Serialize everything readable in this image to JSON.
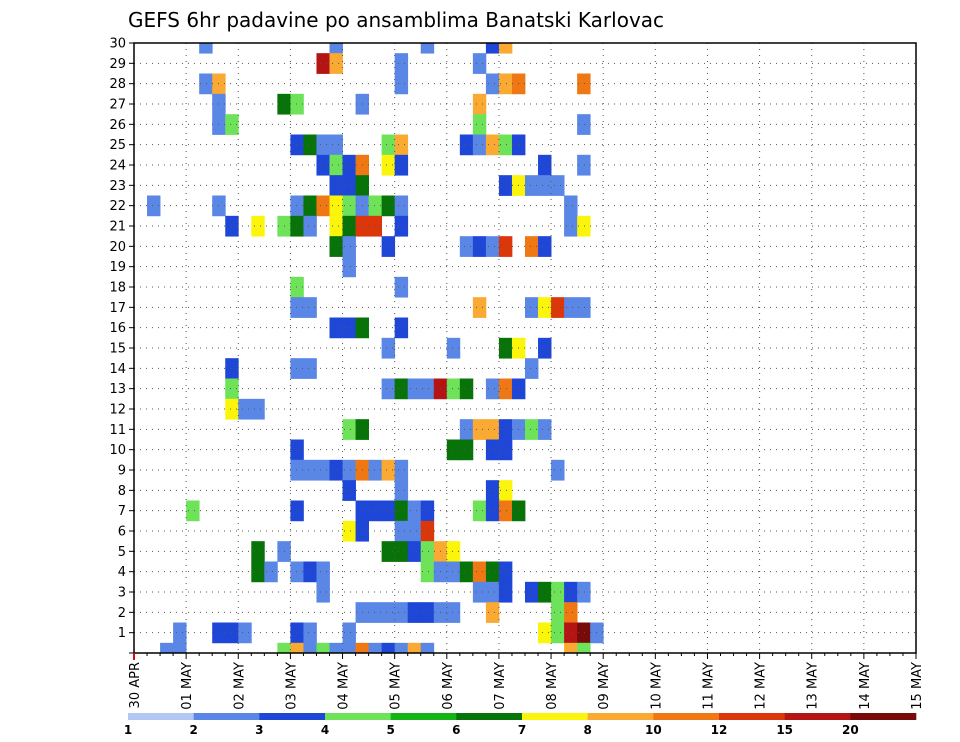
{
  "chart_data": {
    "type": "heatmap",
    "title": "GEFS 6hr padavine po ansamblima Banatski Karlovac",
    "xlabel": "",
    "ylabel": "",
    "x_tick_labels": [
      "30 APR",
      "01 MAY",
      "02 MAY",
      "03 MAY",
      "04 MAY",
      "05 MAY",
      "06 MAY",
      "07 MAY",
      "08 MAY",
      "09 MAY",
      "10 MAY",
      "11 MAY",
      "12 MAY",
      "13 MAY",
      "14 MAY",
      "15 MAY"
    ],
    "y_tick_labels": [
      "0",
      "1",
      "2",
      "3",
      "4",
      "5",
      "6",
      "7",
      "8",
      "9",
      "10",
      "11",
      "12",
      "13",
      "14",
      "15",
      "16",
      "17",
      "18",
      "19",
      "20",
      "21",
      "22",
      "23",
      "24",
      "25",
      "26",
      "27",
      "28",
      "29",
      "30"
    ],
    "ylim": [
      0,
      30
    ],
    "x_step_unit": "6 hr",
    "x_steps_total": 60,
    "grid": true,
    "legend": {
      "placement": "bottom",
      "levels": [
        "1",
        "2",
        "3",
        "4",
        "5",
        "6",
        "7",
        "8",
        "10",
        "12",
        "15",
        "20"
      ],
      "colors": [
        "#b4c6f4",
        "#5a87e6",
        "#1e46d7",
        "#6ee35a",
        "#14b414",
        "#087308",
        "#faf50a",
        "#faaa32",
        "#f07814",
        "#dc370a",
        "#b41414",
        "#780a0a"
      ]
    },
    "cells": [
      [
        5,
        30,
        1
      ],
      [
        15,
        30,
        1
      ],
      [
        22,
        30,
        1
      ],
      [
        27,
        30,
        2
      ],
      [
        28,
        30,
        7
      ],
      [
        14,
        29,
        10
      ],
      [
        15,
        29,
        7
      ],
      [
        20,
        29,
        1
      ],
      [
        26,
        29,
        1
      ],
      [
        5,
        28,
        1
      ],
      [
        6,
        28,
        7
      ],
      [
        20,
        28,
        1
      ],
      [
        27,
        28,
        1
      ],
      [
        28,
        28,
        7
      ],
      [
        29,
        28,
        8
      ],
      [
        34,
        28,
        8
      ],
      [
        6,
        27,
        1
      ],
      [
        11,
        27,
        5
      ],
      [
        12,
        27,
        3
      ],
      [
        17,
        27,
        1
      ],
      [
        26,
        27,
        7
      ],
      [
        6,
        26,
        1
      ],
      [
        7,
        26,
        3
      ],
      [
        26,
        26,
        3
      ],
      [
        34,
        26,
        1
      ],
      [
        12,
        25,
        2
      ],
      [
        13,
        25,
        5
      ],
      [
        14,
        25,
        1
      ],
      [
        15,
        25,
        1
      ],
      [
        19,
        25,
        3
      ],
      [
        20,
        25,
        7
      ],
      [
        25,
        25,
        2
      ],
      [
        26,
        25,
        1
      ],
      [
        27,
        25,
        7
      ],
      [
        28,
        25,
        3
      ],
      [
        29,
        25,
        2
      ],
      [
        14,
        24,
        2
      ],
      [
        15,
        24,
        3
      ],
      [
        16,
        24,
        2
      ],
      [
        17,
        24,
        8
      ],
      [
        19,
        24,
        6
      ],
      [
        20,
        24,
        2
      ],
      [
        31,
        24,
        2
      ],
      [
        34,
        24,
        1
      ],
      [
        15,
        23,
        2
      ],
      [
        16,
        23,
        2
      ],
      [
        17,
        23,
        5
      ],
      [
        28,
        23,
        2
      ],
      [
        29,
        23,
        6
      ],
      [
        30,
        23,
        1
      ],
      [
        31,
        23,
        1
      ],
      [
        32,
        23,
        1
      ],
      [
        1,
        22,
        1
      ],
      [
        6,
        22,
        1
      ],
      [
        12,
        22,
        1
      ],
      [
        13,
        22,
        5
      ],
      [
        14,
        22,
        8
      ],
      [
        15,
        22,
        6
      ],
      [
        16,
        22,
        3
      ],
      [
        17,
        22,
        1
      ],
      [
        18,
        22,
        3
      ],
      [
        19,
        22,
        5
      ],
      [
        20,
        22,
        1
      ],
      [
        33,
        22,
        1
      ],
      [
        7,
        21,
        2
      ],
      [
        9,
        21,
        6
      ],
      [
        11,
        21,
        3
      ],
      [
        12,
        21,
        5
      ],
      [
        13,
        21,
        1
      ],
      [
        15,
        21,
        6
      ],
      [
        16,
        21,
        5
      ],
      [
        17,
        21,
        9
      ],
      [
        18,
        21,
        9
      ],
      [
        20,
        21,
        2
      ],
      [
        33,
        21,
        1
      ],
      [
        34,
        21,
        6
      ],
      [
        15,
        20,
        5
      ],
      [
        16,
        20,
        1
      ],
      [
        19,
        20,
        2
      ],
      [
        25,
        20,
        1
      ],
      [
        26,
        20,
        2
      ],
      [
        27,
        20,
        1
      ],
      [
        28,
        20,
        9
      ],
      [
        30,
        20,
        8
      ],
      [
        31,
        20,
        2
      ],
      [
        16,
        19,
        1
      ],
      [
        12,
        18,
        3
      ],
      [
        20,
        18,
        1
      ],
      [
        12,
        17,
        1
      ],
      [
        13,
        17,
        1
      ],
      [
        26,
        17,
        7
      ],
      [
        30,
        17,
        1
      ],
      [
        31,
        17,
        6
      ],
      [
        32,
        17,
        9
      ],
      [
        33,
        17,
        1
      ],
      [
        34,
        17,
        1
      ],
      [
        15,
        16,
        2
      ],
      [
        16,
        16,
        2
      ],
      [
        17,
        16,
        5
      ],
      [
        20,
        16,
        2
      ],
      [
        19,
        15,
        1
      ],
      [
        24,
        15,
        1
      ],
      [
        28,
        15,
        5
      ],
      [
        29,
        15,
        6
      ],
      [
        31,
        15,
        2
      ],
      [
        7,
        14,
        2
      ],
      [
        12,
        14,
        1
      ],
      [
        13,
        14,
        1
      ],
      [
        30,
        14,
        1
      ],
      [
        7,
        13,
        3
      ],
      [
        19,
        13,
        1
      ],
      [
        20,
        13,
        5
      ],
      [
        21,
        13,
        1
      ],
      [
        22,
        13,
        1
      ],
      [
        23,
        13,
        10
      ],
      [
        24,
        13,
        3
      ],
      [
        25,
        13,
        5
      ],
      [
        27,
        13,
        1
      ],
      [
        28,
        13,
        8
      ],
      [
        29,
        13,
        2
      ],
      [
        7,
        12,
        6
      ],
      [
        8,
        12,
        1
      ],
      [
        9,
        12,
        1
      ],
      [
        16,
        11,
        3
      ],
      [
        17,
        11,
        5
      ],
      [
        25,
        11,
        1
      ],
      [
        26,
        11,
        7
      ],
      [
        27,
        11,
        7
      ],
      [
        28,
        11,
        2
      ],
      [
        29,
        11,
        1
      ],
      [
        30,
        11,
        3
      ],
      [
        31,
        11,
        1
      ],
      [
        12,
        10,
        2
      ],
      [
        24,
        10,
        5
      ],
      [
        25,
        10,
        5
      ],
      [
        27,
        10,
        2
      ],
      [
        28,
        10,
        2
      ],
      [
        12,
        9,
        1
      ],
      [
        13,
        9,
        1
      ],
      [
        14,
        9,
        1
      ],
      [
        15,
        9,
        2
      ],
      [
        16,
        9,
        1
      ],
      [
        17,
        9,
        8
      ],
      [
        18,
        9,
        1
      ],
      [
        19,
        9,
        7
      ],
      [
        20,
        9,
        1
      ],
      [
        32,
        9,
        1
      ],
      [
        16,
        8,
        2
      ],
      [
        20,
        8,
        1
      ],
      [
        27,
        8,
        2
      ],
      [
        28,
        8,
        6
      ],
      [
        4,
        7,
        3
      ],
      [
        12,
        7,
        2
      ],
      [
        17,
        7,
        2
      ],
      [
        18,
        7,
        2
      ],
      [
        19,
        7,
        2
      ],
      [
        20,
        7,
        5
      ],
      [
        21,
        7,
        1
      ],
      [
        22,
        7,
        2
      ],
      [
        26,
        7,
        3
      ],
      [
        27,
        7,
        2
      ],
      [
        28,
        7,
        8
      ],
      [
        29,
        7,
        5
      ],
      [
        16,
        6,
        6
      ],
      [
        17,
        6,
        2
      ],
      [
        20,
        6,
        1
      ],
      [
        21,
        6,
        1
      ],
      [
        22,
        6,
        9
      ],
      [
        11,
        5,
        1
      ],
      [
        9,
        5,
        5
      ],
      [
        19,
        5,
        5
      ],
      [
        20,
        5,
        5
      ],
      [
        21,
        5,
        2
      ],
      [
        22,
        5,
        3
      ],
      [
        23,
        5,
        7
      ],
      [
        24,
        5,
        6
      ],
      [
        9,
        4,
        5
      ],
      [
        10,
        4,
        1
      ],
      [
        12,
        4,
        1
      ],
      [
        13,
        4,
        2
      ],
      [
        14,
        4,
        1
      ],
      [
        22,
        4,
        3
      ],
      [
        23,
        4,
        1
      ],
      [
        24,
        4,
        1
      ],
      [
        25,
        4,
        5
      ],
      [
        26,
        4,
        8
      ],
      [
        27,
        4,
        5
      ],
      [
        28,
        4,
        2
      ],
      [
        14,
        3,
        1
      ],
      [
        26,
        3,
        1
      ],
      [
        27,
        3,
        1
      ],
      [
        28,
        3,
        2
      ],
      [
        30,
        3,
        2
      ],
      [
        31,
        3,
        5
      ],
      [
        32,
        3,
        3
      ],
      [
        33,
        3,
        2
      ],
      [
        34,
        3,
        1
      ],
      [
        17,
        2,
        1
      ],
      [
        18,
        2,
        1
      ],
      [
        19,
        2,
        1
      ],
      [
        20,
        2,
        1
      ],
      [
        21,
        2,
        2
      ],
      [
        22,
        2,
        2
      ],
      [
        23,
        2,
        1
      ],
      [
        24,
        2,
        1
      ],
      [
        27,
        2,
        7
      ],
      [
        32,
        2,
        3
      ],
      [
        33,
        2,
        8
      ],
      [
        3,
        1,
        1
      ],
      [
        6,
        1,
        2
      ],
      [
        7,
        1,
        2
      ],
      [
        8,
        1,
        1
      ],
      [
        12,
        1,
        2
      ],
      [
        13,
        1,
        1
      ],
      [
        16,
        1,
        1
      ],
      [
        31,
        1,
        6
      ],
      [
        32,
        1,
        3
      ],
      [
        33,
        1,
        10
      ],
      [
        34,
        1,
        11
      ],
      [
        35,
        1,
        1
      ],
      [
        2,
        0,
        1
      ],
      [
        3,
        0,
        1
      ],
      [
        11,
        0,
        3
      ],
      [
        12,
        0,
        7
      ],
      [
        13,
        0,
        1
      ],
      [
        14,
        0,
        3
      ],
      [
        15,
        0,
        1
      ],
      [
        16,
        0,
        1
      ],
      [
        17,
        0,
        8
      ],
      [
        18,
        0,
        1
      ],
      [
        19,
        0,
        2
      ],
      [
        20,
        0,
        1
      ],
      [
        21,
        0,
        7
      ],
      [
        22,
        0,
        1
      ],
      [
        33,
        0,
        7
      ],
      [
        34,
        0,
        3
      ]
    ]
  }
}
